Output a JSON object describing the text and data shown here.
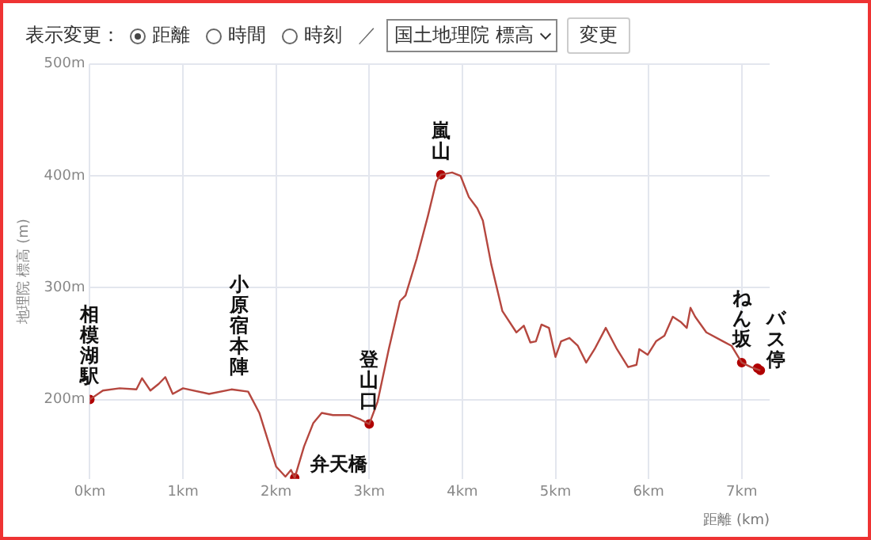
{
  "chart_data": {
    "type": "line",
    "xlabel": "距離 (km)",
    "ylabel": "地理院 標高 (m)",
    "x": [
      0,
      0.14,
      0.32,
      0.5,
      0.56,
      0.65,
      0.74,
      0.81,
      0.89,
      1.0,
      1.28,
      1.52,
      1.7,
      1.82,
      1.91,
      2.0,
      2.1,
      2.16,
      2.2,
      2.3,
      2.4,
      2.49,
      2.61,
      2.79,
      2.91,
      3.0,
      3.09,
      3.21,
      3.33,
      3.39,
      3.51,
      3.63,
      3.72,
      3.77,
      3.89,
      3.98,
      4.07,
      4.16,
      4.22,
      4.31,
      4.43,
      4.58,
      4.66,
      4.73,
      4.79,
      4.85,
      4.93,
      5.0,
      5.06,
      5.15,
      5.24,
      5.33,
      5.42,
      5.54,
      5.66,
      5.78,
      5.87,
      5.9,
      5.99,
      6.08,
      6.17,
      6.26,
      6.35,
      6.41,
      6.45,
      6.5,
      6.62,
      6.8,
      6.89,
      7.0,
      7.1,
      7.2
    ],
    "series": [
      {
        "color": "#b5473f",
        "values": [
          200,
          208,
          210,
          209,
          219,
          208,
          214,
          220,
          205,
          210,
          205,
          209,
          207,
          188,
          164,
          140,
          131,
          137,
          130,
          158,
          179,
          188,
          186,
          186,
          182,
          178,
          198,
          245,
          288,
          293,
          326,
          364,
          395,
          401,
          403,
          400,
          381,
          371,
          360,
          321,
          279,
          260,
          266,
          251,
          252,
          267,
          264,
          238,
          252,
          255,
          248,
          233,
          245,
          264,
          245,
          229,
          231,
          245,
          240,
          252,
          257,
          274,
          269,
          264,
          282,
          274,
          260,
          252,
          248,
          233,
          229,
          226
        ]
      },
      {
        "type": "scatter",
        "color": "#b00000",
        "marker": "circle",
        "x": [
          0,
          2.2,
          3.0,
          3.77,
          7.0,
          7.17,
          7.2
        ],
        "values": [
          200,
          130,
          178,
          401,
          233,
          228,
          226
        ]
      }
    ],
    "xlim": [
      0,
      7.3
    ],
    "ylim": [
      129,
      500
    ],
    "xticks": [
      {
        "value": 0,
        "label": "0km"
      },
      {
        "value": 1,
        "label": "1km"
      },
      {
        "value": 2,
        "label": "2km"
      },
      {
        "value": 3,
        "label": "3km"
      },
      {
        "value": 4,
        "label": "4km"
      },
      {
        "value": 5,
        "label": "5km"
      },
      {
        "value": 6,
        "label": "6km"
      },
      {
        "value": 7,
        "label": "7km"
      }
    ],
    "yticks": [
      {
        "value": 200,
        "label": "200m"
      },
      {
        "value": 300,
        "label": "300m"
      },
      {
        "value": 400,
        "label": "400m"
      },
      {
        "value": 500,
        "label": "500m"
      }
    ],
    "grid": true,
    "legend": false,
    "annotations": [
      "表示変更：",
      "距離",
      "時間",
      "時刻",
      "／",
      "国土地理院 標高",
      "変更",
      {
        "text": "相模湖駅",
        "x": 0,
        "y": 200
      },
      {
        "text": "小原宿本陣",
        "x": 1.6,
        "y": 208
      },
      {
        "text": "弁天橋",
        "x": 2.2,
        "y": 130
      },
      {
        "text": "登山口",
        "x": 3.0,
        "y": 178
      },
      {
        "text": "嵐山",
        "x": 3.77,
        "y": 401
      },
      {
        "text": "ねん坂",
        "x": 7.0,
        "y": 233
      },
      {
        "text": "バス停",
        "x": 7.2,
        "y": 226
      }
    ]
  }
}
